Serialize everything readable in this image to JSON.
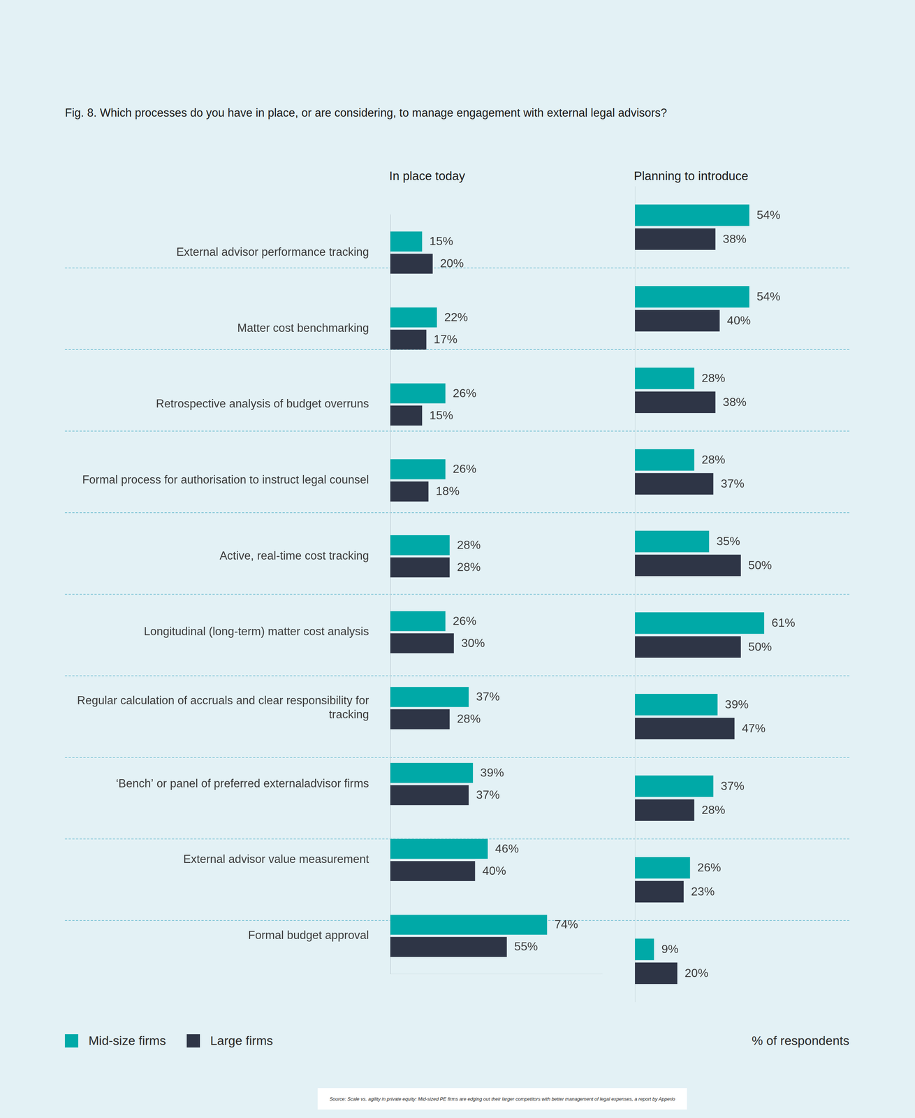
{
  "chart_data": {
    "type": "bar",
    "orientation": "horizontal",
    "title": "Fig. 8. Which processes do you have in place, or are considering, to manage engagement with external legal advisors?",
    "categories": [
      "External advisor performance tracking",
      "Matter cost benchmarking",
      "Retrospective analysis of budget overruns",
      "Formal process for authorisation to instruct legal counsel",
      "Active, real-time cost tracking",
      "Longitudinal (long-term) matter cost analysis",
      "Regular calculation of accruals and clear responsibility for tracking",
      "‘Bench’ or panel of preferred externaladvisor firms",
      "External advisor value measurement",
      "Formal budget approval"
    ],
    "panels": [
      {
        "title": "In place today",
        "series": [
          {
            "name": "Mid-size firms",
            "color": "#00a9a7",
            "values": [
              15,
              22,
              26,
              26,
              28,
              26,
              37,
              39,
              46,
              74
            ],
            "value_labels": [
              "15%",
              "22%",
              "26%",
              "26%",
              "28%",
              "26%",
              "37%",
              "39%",
              "46%",
              "74%"
            ]
          },
          {
            "name": "Large firms",
            "color": "#2e3546",
            "values": [
              20,
              17,
              15,
              18,
              28,
              30,
              28,
              37,
              40,
              55
            ],
            "value_labels": [
              "20%",
              "17%",
              "15%",
              "18%",
              "28%",
              "30%",
              "28%",
              "37%",
              "40%",
              "55%"
            ]
          }
        ]
      },
      {
        "title": "Planning to introduce",
        "series": [
          {
            "name": "Mid-size firms",
            "color": "#00a9a7",
            "values": [
              54,
              54,
              28,
              28,
              35,
              61,
              39,
              37,
              26,
              9
            ],
            "value_labels": [
              "54%",
              "54%",
              "28%",
              "28%",
              "35%",
              "61%",
              "39%",
              "37%",
              "26%",
              "9%"
            ]
          },
          {
            "name": "Large firms",
            "color": "#2e3546",
            "values": [
              38,
              40,
              38,
              37,
              50,
              50,
              47,
              28,
              23,
              20
            ],
            "value_labels": [
              "38%",
              "40%",
              "38%",
              "37%",
              "50%",
              "50%",
              "47%",
              "28%",
              "23%",
              "20%"
            ]
          }
        ]
      }
    ],
    "xlim": [
      0,
      100
    ],
    "xlabel": "% of respondents",
    "data_labels": true,
    "tick_labels": "y",
    "grid": false,
    "legend": "bottom-left",
    "source": "Source: Scale vs. agility in private equity: Mid-sized PE firms are edging out their larger competitors with better management of legal expenses, a report by Apperio"
  }
}
